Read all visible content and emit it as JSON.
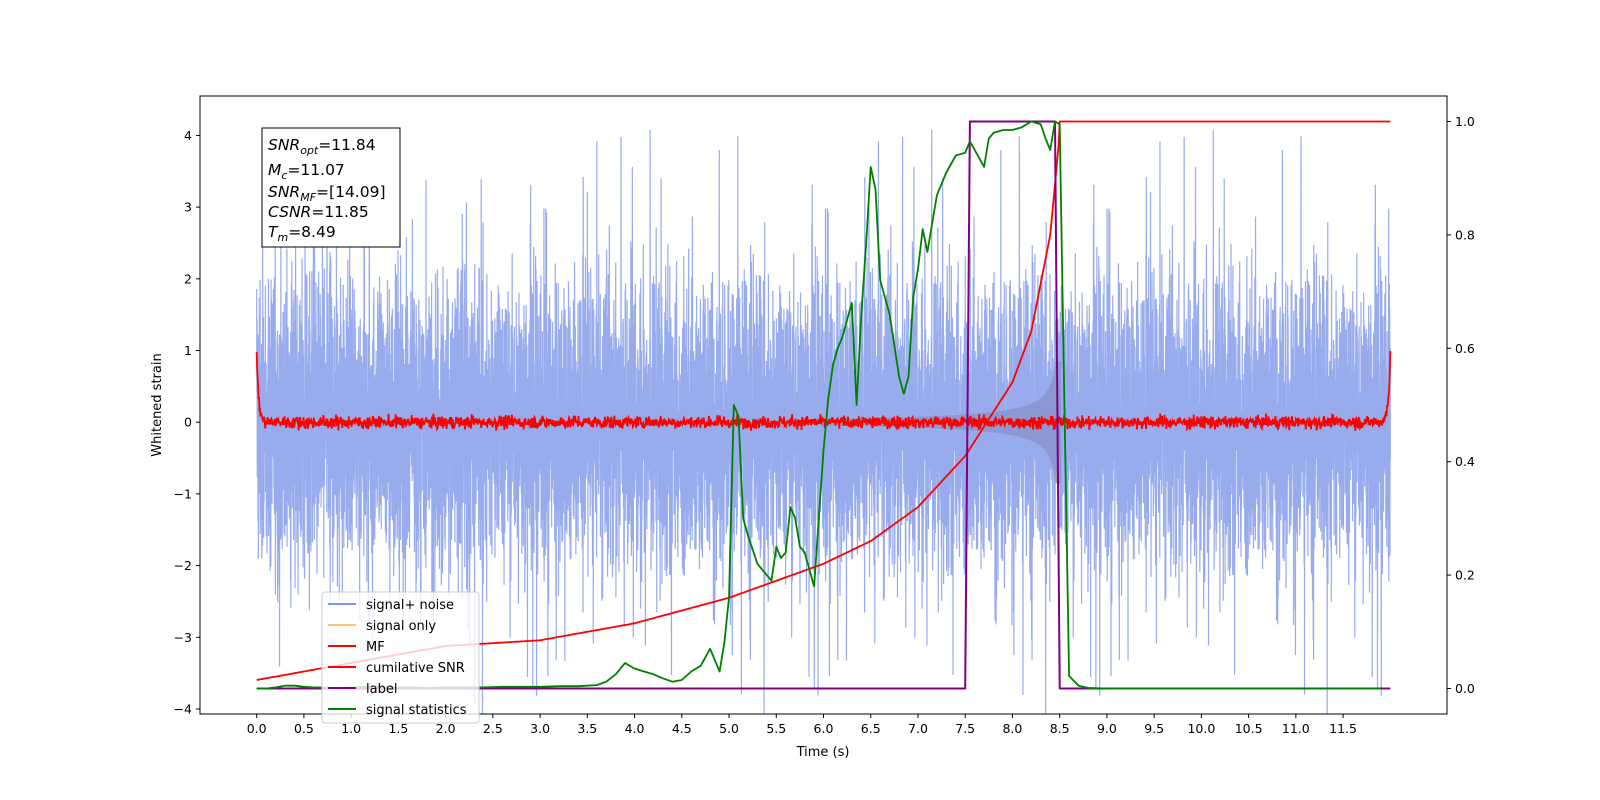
{
  "chart_data": {
    "type": "line",
    "xlabel": "Time (s)",
    "ylabel": "Whitened strain",
    "xlim": [
      -0.6,
      12.6
    ],
    "ylim": [
      -4.07,
      4.55
    ],
    "y2lim": [
      -0.045,
      1.045
    ],
    "xticks": [
      "0.0",
      "0.5",
      "1.0",
      "1.5",
      "2.0",
      "2.5",
      "3.0",
      "3.5",
      "4.0",
      "4.5",
      "5.0",
      "5.5",
      "6.0",
      "6.5",
      "7.0",
      "7.5",
      "8.0",
      "8.5",
      "9.0",
      "9.5",
      "10.0",
      "10.5",
      "11.0",
      "11.5"
    ],
    "yticks": [
      "4",
      "3",
      "2",
      "1",
      "0",
      "−1",
      "−2",
      "−3",
      "−4"
    ],
    "y2ticks": [
      "1.0",
      "0.8",
      "0.6",
      "0.4",
      "0.2",
      "0.0"
    ],
    "colors": {
      "noise": "#7b95e8",
      "signal": "#b8976c",
      "mf": "#ff0000",
      "csnr": "#ff0000",
      "label": "#800080",
      "stats": "#008000"
    },
    "legend_position": "lower-left",
    "legend": [
      "signal+ noise",
      "signal only",
      "MF",
      "cumilative SNR",
      "label",
      "signal statistics"
    ],
    "annotation": {
      "snr_opt": "=11.84",
      "mc": "=11.07",
      "snr_mf": "=[14.09]",
      "csnr": "=11.85",
      "tm": "=8.49"
    },
    "noise_envelope": {
      "t_range": [
        0.0,
        12.0
      ],
      "typical_range": [
        -1.8,
        1.8
      ],
      "max_abs": 4.15
    },
    "signal_chirp": {
      "t_start": 6.0,
      "t_merger": 8.49,
      "peak_amplitude": 0.85
    },
    "mf_series": {
      "t_range": [
        0.0,
        12.0
      ],
      "baseline": 0.0,
      "noise_amplitude": 0.08,
      "edge_value": 1.0
    },
    "csnr_series": {
      "x": [
        0.0,
        1.0,
        2.0,
        3.0,
        4.0,
        5.0,
        6.0,
        6.5,
        7.0,
        7.5,
        8.0,
        8.2,
        8.4,
        8.49,
        8.5,
        12.0
      ],
      "y2": [
        0.015,
        0.045,
        0.075,
        0.085,
        0.115,
        0.16,
        0.22,
        0.26,
        0.32,
        0.41,
        0.54,
        0.63,
        0.8,
        0.96,
        1.0,
        1.0
      ]
    },
    "label_series": {
      "x": [
        0.0,
        7.5,
        7.55,
        8.45,
        8.5,
        12.0
      ],
      "y2": [
        0.0,
        0.0,
        1.0,
        1.0,
        0.0,
        0.0
      ]
    },
    "stats_series": {
      "x": [
        0.0,
        0.1,
        0.2,
        0.3,
        0.4,
        0.5,
        0.6,
        0.7,
        0.8,
        0.9,
        1.0,
        1.2,
        1.4,
        1.6,
        1.8,
        2.0,
        2.2,
        2.4,
        2.6,
        2.8,
        3.0,
        3.2,
        3.4,
        3.6,
        3.7,
        3.8,
        3.9,
        4.0,
        4.1,
        4.2,
        4.3,
        4.4,
        4.5,
        4.6,
        4.7,
        4.8,
        4.9,
        4.95,
        5.0,
        5.05,
        5.1,
        5.15,
        5.2,
        5.3,
        5.4,
        5.45,
        5.5,
        5.55,
        5.6,
        5.65,
        5.7,
        5.75,
        5.8,
        5.9,
        6.0,
        6.05,
        6.1,
        6.15,
        6.2,
        6.3,
        6.35,
        6.4,
        6.45,
        6.5,
        6.55,
        6.6,
        6.7,
        6.8,
        6.85,
        6.9,
        6.95,
        7.0,
        7.05,
        7.1,
        7.15,
        7.2,
        7.3,
        7.4,
        7.5,
        7.55,
        7.6,
        7.65,
        7.7,
        7.75,
        7.8,
        7.9,
        8.0,
        8.1,
        8.2,
        8.3,
        8.35,
        8.4,
        8.45,
        8.5,
        8.55,
        8.6,
        8.7,
        8.8,
        9.0,
        10.0,
        11.0,
        11.9
      ],
      "y2": [
        0.0,
        0.0,
        0.002,
        0.005,
        0.005,
        0.003,
        0.002,
        0.002,
        0.001,
        0.001,
        0.002,
        0.003,
        0.002,
        0.002,
        0.001,
        0.002,
        0.002,
        0.002,
        0.003,
        0.003,
        0.003,
        0.004,
        0.004,
        0.006,
        0.012,
        0.025,
        0.045,
        0.035,
        0.03,
        0.025,
        0.018,
        0.012,
        0.015,
        0.03,
        0.04,
        0.07,
        0.03,
        0.08,
        0.16,
        0.5,
        0.48,
        0.3,
        0.27,
        0.22,
        0.2,
        0.19,
        0.25,
        0.23,
        0.24,
        0.32,
        0.3,
        0.25,
        0.24,
        0.18,
        0.42,
        0.51,
        0.57,
        0.6,
        0.62,
        0.68,
        0.5,
        0.66,
        0.78,
        0.92,
        0.88,
        0.72,
        0.66,
        0.55,
        0.52,
        0.55,
        0.69,
        0.74,
        0.81,
        0.77,
        0.82,
        0.87,
        0.91,
        0.94,
        0.945,
        0.965,
        0.95,
        0.935,
        0.92,
        0.97,
        0.98,
        0.985,
        0.985,
        0.99,
        1.0,
        0.995,
        0.97,
        0.95,
        1.0,
        0.995,
        0.5,
        0.022,
        0.005,
        0.001,
        0.0,
        0.0,
        0.0,
        0.0
      ]
    }
  }
}
